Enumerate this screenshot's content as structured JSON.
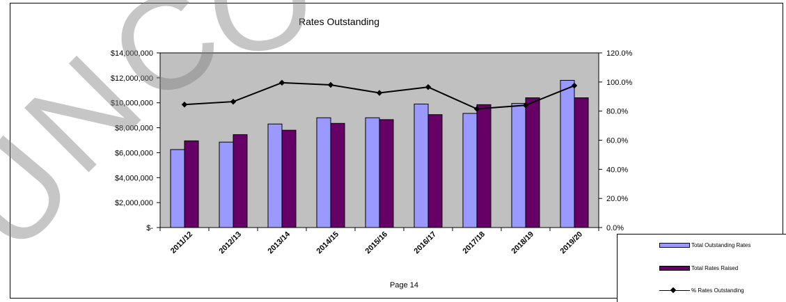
{
  "chart_data": {
    "type": "bar",
    "title": "Rates Outstanding",
    "categories": [
      "2011/12",
      "2012/13",
      "2013/14",
      "2014/15",
      "2015/16",
      "2016/17",
      "2017/18",
      "2018/19",
      "2019/20"
    ],
    "series": [
      {
        "name": "Total Outstanding Rates",
        "type": "bar",
        "axis": "left",
        "color": "#9999ff",
        "values": [
          6250000,
          6850000,
          8300000,
          8800000,
          8800000,
          9900000,
          9150000,
          9950000,
          11800000
        ]
      },
      {
        "name": "Total Rates Raised",
        "type": "bar",
        "axis": "left",
        "color": "#660066",
        "values": [
          6950000,
          7450000,
          7800000,
          8350000,
          8650000,
          9050000,
          9850000,
          10400000,
          10400000
        ]
      },
      {
        "name": "% Rates Outstanding",
        "type": "line",
        "axis": "right",
        "color": "#000000",
        "values": [
          84.5,
          86.5,
          99.5,
          98,
          92.5,
          96.5,
          81.5,
          84,
          97.5
        ]
      }
    ],
    "y_left": {
      "min": 0,
      "max": 14000000,
      "step": 2000000,
      "tick_labels": [
        "$-",
        "$2,000,000",
        "$4,000,000",
        "$6,000,000",
        "$8,000,000",
        "$10,000,000",
        "$12,000,000",
        "$14,000,000"
      ]
    },
    "y_right": {
      "min": 0,
      "max": 120,
      "step": 20,
      "tick_labels": [
        "0.0%",
        "20.0%",
        "40.0%",
        "60.0%",
        "80.0%",
        "100.0%",
        "120.0%"
      ]
    },
    "plot_background": "#c0c0c0",
    "grid": false,
    "legend": {
      "position": "bottom-right",
      "entries": [
        "Total Outstanding Rates",
        "Total Rates Raised",
        "% Rates Outstanding"
      ]
    }
  },
  "legend_labels": {
    "outstanding": "Total Outstanding Rates",
    "raised": "Total Rates Raised",
    "percent": "% Rates Outstanding"
  },
  "page_label": "Page 14",
  "watermark": "UNCO"
}
